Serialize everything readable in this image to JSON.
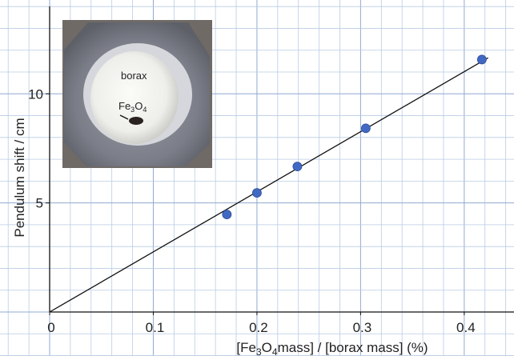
{
  "chart_data": {
    "type": "scatter",
    "xlabel_parts": [
      "[Fe",
      "3",
      "O",
      "4",
      "mass] / [borax mass]  (%)"
    ],
    "ylabel": "Pendulum shift  /  cm",
    "x": [
      0.171,
      0.2,
      0.239,
      0.305,
      0.417
    ],
    "values": [
      4.47,
      5.46,
      6.67,
      8.42,
      11.57
    ],
    "color": "#4169c4",
    "fit_line": {
      "x": [
        0,
        0.423
      ],
      "values": [
        0,
        11.65
      ],
      "color": "#111111"
    },
    "xlim": [
      0,
      0.448
    ],
    "ylim": [
      0,
      14.3
    ],
    "xticks": [
      0,
      0.1,
      0.2,
      0.3,
      0.4
    ],
    "yticks": [
      5,
      10
    ],
    "grid": true,
    "inset_labels": {
      "borax": "borax",
      "fe3o4_parts": [
        "Fe",
        "3",
        "O",
        "4"
      ]
    }
  }
}
